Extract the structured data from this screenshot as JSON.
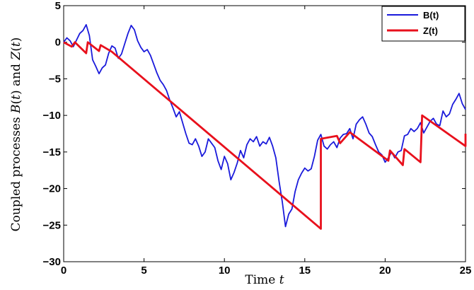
{
  "chart_data": {
    "type": "line",
    "xlabel": "Time t",
    "ylabel": "Coupled processes B(t) and Z(t)",
    "xlim": [
      0,
      25
    ],
    "ylim": [
      -30,
      5
    ],
    "xticks": [
      "0",
      "5",
      "10",
      "15",
      "20",
      "25"
    ],
    "yticks": [
      "5",
      "0",
      "−5",
      "−10",
      "−15",
      "−20",
      "−25",
      "−30"
    ],
    "grid": false,
    "legend_position": "top-right",
    "series": [
      {
        "name": "B(t)",
        "color": "#1a1adb",
        "points": [
          [
            0,
            0
          ],
          [
            0.2,
            0.6
          ],
          [
            0.4,
            0.2
          ],
          [
            0.6,
            -0.6
          ],
          [
            0.8,
            0.3
          ],
          [
            1.0,
            1.2
          ],
          [
            1.2,
            1.6
          ],
          [
            1.4,
            2.4
          ],
          [
            1.6,
            0.9
          ],
          [
            1.8,
            -2.4
          ],
          [
            2.0,
            -3.3
          ],
          [
            2.2,
            -4.3
          ],
          [
            2.4,
            -3.5
          ],
          [
            2.6,
            -3.1
          ],
          [
            2.8,
            -1.5
          ],
          [
            3.0,
            -0.5
          ],
          [
            3.2,
            -0.8
          ],
          [
            3.4,
            -2.2
          ],
          [
            3.6,
            -1.6
          ],
          [
            3.8,
            -0.2
          ],
          [
            4.0,
            1.2
          ],
          [
            4.2,
            2.3
          ],
          [
            4.4,
            1.7
          ],
          [
            4.6,
            0.2
          ],
          [
            4.8,
            -0.7
          ],
          [
            5.0,
            -1.3
          ],
          [
            5.2,
            -1.0
          ],
          [
            5.4,
            -1.8
          ],
          [
            5.6,
            -3.0
          ],
          [
            5.8,
            -4.2
          ],
          [
            6.0,
            -5.2
          ],
          [
            6.2,
            -5.8
          ],
          [
            6.4,
            -6.6
          ],
          [
            6.6,
            -7.9
          ],
          [
            6.8,
            -9.0
          ],
          [
            7.0,
            -10.2
          ],
          [
            7.2,
            -9.5
          ],
          [
            7.4,
            -11.0
          ],
          [
            7.6,
            -12.5
          ],
          [
            7.8,
            -13.8
          ],
          [
            8.0,
            -14.0
          ],
          [
            8.2,
            -13.2
          ],
          [
            8.4,
            -14.2
          ],
          [
            8.6,
            -15.6
          ],
          [
            8.8,
            -15.0
          ],
          [
            9.0,
            -13.2
          ],
          [
            9.2,
            -13.8
          ],
          [
            9.4,
            -14.4
          ],
          [
            9.6,
            -16.2
          ],
          [
            9.8,
            -17.4
          ],
          [
            10.0,
            -15.6
          ],
          [
            10.2,
            -16.6
          ],
          [
            10.4,
            -18.8
          ],
          [
            10.6,
            -17.8
          ],
          [
            10.8,
            -16.5
          ],
          [
            11.0,
            -14.8
          ],
          [
            11.2,
            -15.8
          ],
          [
            11.4,
            -14.0
          ],
          [
            11.6,
            -13.2
          ],
          [
            11.8,
            -13.6
          ],
          [
            12.0,
            -12.9
          ],
          [
            12.2,
            -14.2
          ],
          [
            12.4,
            -13.6
          ],
          [
            12.6,
            -13.9
          ],
          [
            12.8,
            -13.0
          ],
          [
            13.0,
            -14.2
          ],
          [
            13.2,
            -15.8
          ],
          [
            13.4,
            -19.0
          ],
          [
            13.6,
            -21.8
          ],
          [
            13.8,
            -25.2
          ],
          [
            14.0,
            -23.5
          ],
          [
            14.2,
            -22.8
          ],
          [
            14.4,
            -20.4
          ],
          [
            14.6,
            -18.8
          ],
          [
            14.8,
            -17.9
          ],
          [
            15.0,
            -17.2
          ],
          [
            15.2,
            -17.6
          ],
          [
            15.4,
            -17.3
          ],
          [
            15.6,
            -15.6
          ],
          [
            15.8,
            -13.4
          ],
          [
            16.0,
            -12.6
          ],
          [
            16.2,
            -14.2
          ],
          [
            16.4,
            -14.6
          ],
          [
            16.6,
            -14.0
          ],
          [
            16.8,
            -13.6
          ],
          [
            17.0,
            -14.4
          ],
          [
            17.2,
            -13.1
          ],
          [
            17.4,
            -12.6
          ],
          [
            17.6,
            -12.5
          ],
          [
            17.8,
            -11.8
          ],
          [
            18.0,
            -13.2
          ],
          [
            18.2,
            -11.2
          ],
          [
            18.4,
            -10.6
          ],
          [
            18.6,
            -10.2
          ],
          [
            18.8,
            -11.2
          ],
          [
            19.0,
            -12.4
          ],
          [
            19.2,
            -12.9
          ],
          [
            19.4,
            -14.0
          ],
          [
            19.6,
            -15.0
          ],
          [
            19.8,
            -15.4
          ],
          [
            20.0,
            -16.4
          ],
          [
            20.2,
            -15.8
          ],
          [
            20.4,
            -15.0
          ],
          [
            20.6,
            -15.8
          ],
          [
            20.8,
            -15.0
          ],
          [
            21.0,
            -14.8
          ],
          [
            21.2,
            -12.8
          ],
          [
            21.4,
            -12.6
          ],
          [
            21.6,
            -11.8
          ],
          [
            21.8,
            -12.2
          ],
          [
            22.0,
            -11.8
          ],
          [
            22.2,
            -11.0
          ],
          [
            22.4,
            -12.4
          ],
          [
            22.6,
            -11.6
          ],
          [
            22.8,
            -10.8
          ],
          [
            23.0,
            -10.4
          ],
          [
            23.2,
            -11.2
          ],
          [
            23.4,
            -11.4
          ],
          [
            23.6,
            -9.4
          ],
          [
            23.8,
            -10.2
          ],
          [
            24.0,
            -9.8
          ],
          [
            24.2,
            -8.5
          ],
          [
            24.4,
            -7.8
          ],
          [
            24.6,
            -7.0
          ],
          [
            24.8,
            -8.4
          ],
          [
            25.0,
            -9.2
          ]
        ]
      },
      {
        "name": "Z(t)",
        "color": "#e8101c",
        "points": [
          [
            0,
            0
          ],
          [
            0.5,
            -0.6
          ],
          [
            0.7,
            0
          ],
          [
            1.4,
            -1.5
          ],
          [
            1.5,
            0
          ],
          [
            2.2,
            -1.2
          ],
          [
            2.3,
            -0.4
          ],
          [
            3.0,
            -1.3
          ],
          [
            16.0,
            -25.5
          ],
          [
            16.0,
            -13.2
          ],
          [
            17.0,
            -12.8
          ],
          [
            17.2,
            -13.8
          ],
          [
            17.8,
            -12.3
          ],
          [
            20.2,
            -16.2
          ],
          [
            20.3,
            -14.8
          ],
          [
            21.1,
            -16.8
          ],
          [
            21.2,
            -14.6
          ],
          [
            22.2,
            -16.4
          ],
          [
            22.3,
            -10.0
          ],
          [
            25.0,
            -14.2
          ],
          [
            25.0,
            -12.5
          ]
        ]
      }
    ]
  }
}
